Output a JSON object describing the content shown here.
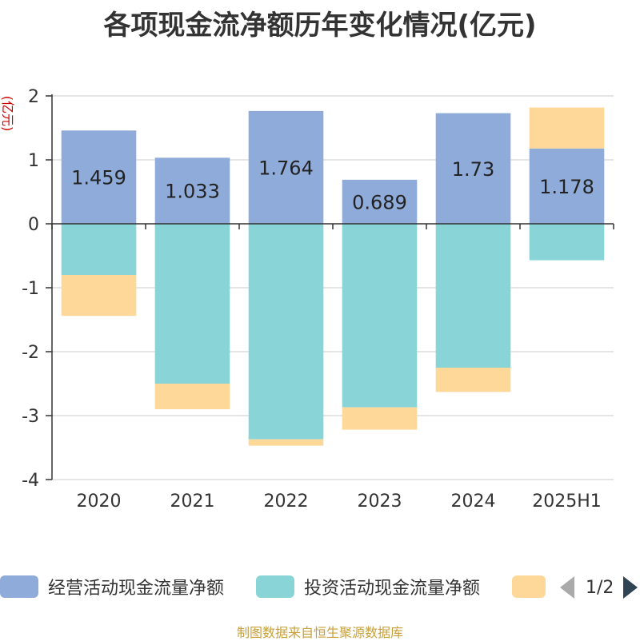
{
  "title": "各项现金流净额历年变化情况(亿元)",
  "source_note": "制图数据来自恒生聚源数据库",
  "legend": {
    "items": [
      {
        "label": "经营活动现金流量净额",
        "color": "#8fabd9"
      },
      {
        "label": "投资活动现金流量净额",
        "color": "#88d4d6"
      },
      {
        "label": "",
        "color": "#fdd898"
      }
    ],
    "page": "1/2"
  },
  "chart_data": {
    "type": "bar",
    "stacked": true,
    "ylabel": "(亿元)",
    "ylabel_color": "#cc0000",
    "ylim": [
      -4,
      2
    ],
    "yticks": [
      2,
      1,
      0,
      -1,
      -2,
      -3,
      -4
    ],
    "ytick_labels": [
      "2",
      "1",
      "0",
      "-1",
      "-2",
      "-3",
      "-4"
    ],
    "grid": true,
    "categories": [
      "2020",
      "2021",
      "2022",
      "2023",
      "2024",
      "2025H1"
    ],
    "series": [
      {
        "name": "经营活动现金流量净额",
        "color": "#8fabd9",
        "values": [
          1.459,
          1.033,
          1.764,
          0.689,
          1.73,
          1.178
        ],
        "labels": [
          "1.459",
          "1.033",
          "1.764",
          "0.689",
          "1.73",
          "1.178"
        ]
      },
      {
        "name": "投资活动现金流量净额",
        "color": "#88d4d6",
        "values": [
          -0.8,
          -2.5,
          -3.37,
          -2.87,
          -2.25,
          -0.57
        ]
      },
      {
        "color": "#fdd898",
        "values": [
          -0.64,
          -0.4,
          -0.1,
          -0.35,
          -0.38,
          0.64
        ]
      }
    ]
  }
}
